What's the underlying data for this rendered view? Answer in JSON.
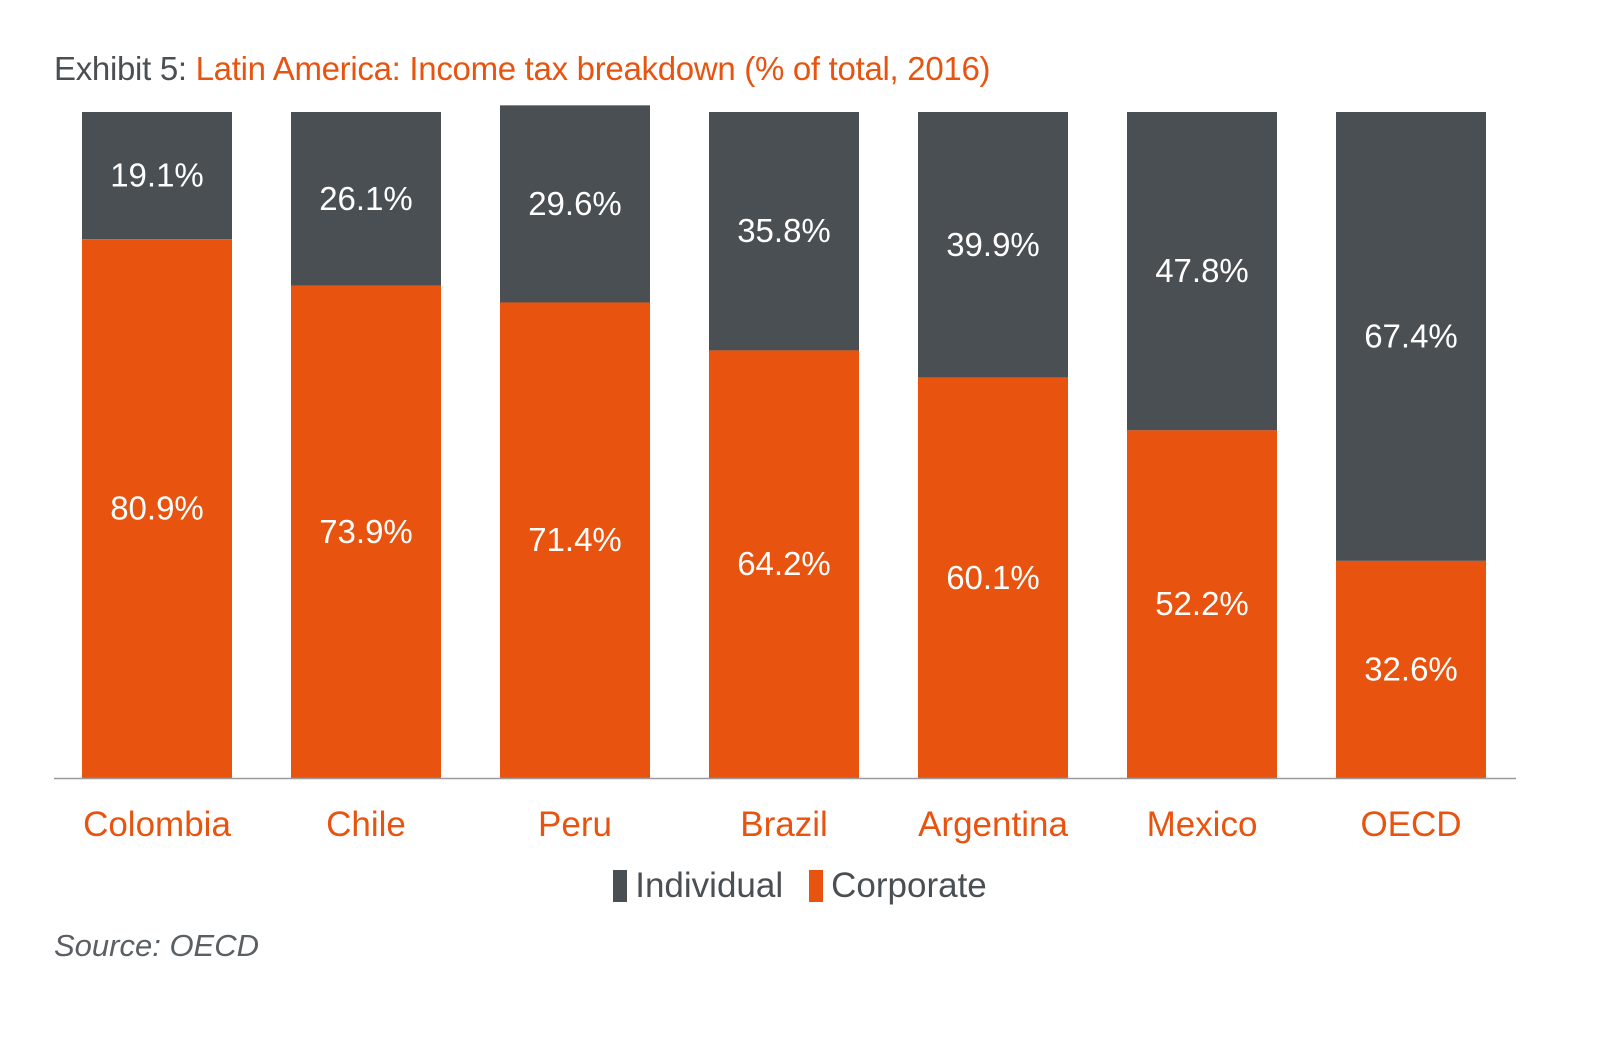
{
  "title": {
    "prefix": "Exhibit 5:",
    "main": "Latin America: Income tax breakdown (% of total, 2016)"
  },
  "source": "Source: OECD",
  "colors": {
    "individual": "#4a4f54",
    "corporate": "#e8540f",
    "category_label": "#e8540f",
    "axis": "#9a9a9a"
  },
  "chart_data": {
    "type": "bar",
    "stacked": true,
    "title": "Latin America: Income tax breakdown (% of total, 2016)",
    "categories": [
      "Colombia",
      "Chile",
      "Peru",
      "Brazil",
      "Argentina",
      "Mexico",
      "OECD"
    ],
    "series": [
      {
        "name": "Individual",
        "values": [
          19.1,
          26.1,
          29.6,
          35.8,
          39.9,
          47.8,
          67.4
        ],
        "labels": [
          "19.1%",
          "26.1%",
          "29.6%",
          "35.8%",
          "39.9%",
          "47.8%",
          "67.4%"
        ]
      },
      {
        "name": "Corporate",
        "values": [
          80.9,
          73.9,
          71.4,
          64.2,
          60.1,
          52.2,
          32.6
        ],
        "labels": [
          "80.9%",
          "73.9%",
          "71.4%",
          "64.2%",
          "60.1%",
          "52.2%",
          "32.6%"
        ]
      }
    ],
    "ylim": [
      0,
      100
    ],
    "grid": false,
    "legend_position": "bottom"
  }
}
